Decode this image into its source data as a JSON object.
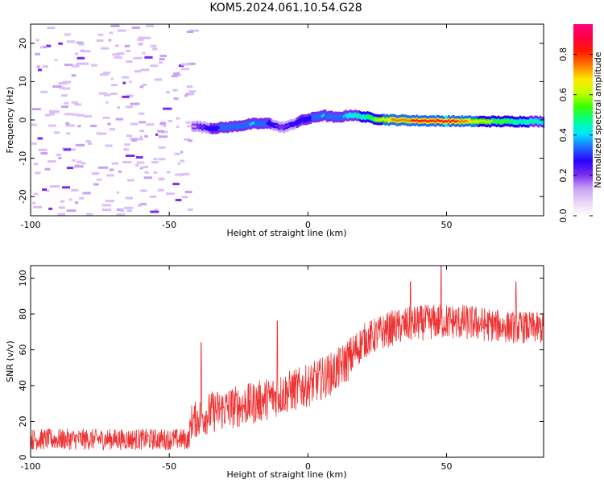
{
  "title": "KOM5.2024.061.10.54.G28",
  "chart_data": [
    {
      "type": "heatmap",
      "xlabel": "Height of straight line (km)",
      "ylabel": "Frequency (Hz)",
      "xlim": [
        -100,
        85
      ],
      "ylim": [
        -25,
        25
      ],
      "xticks": [
        -100,
        -50,
        0,
        50
      ],
      "yticks": [
        -20,
        -10,
        0,
        10,
        20
      ],
      "colorbar": {
        "label": "Normalized spectral amplitude",
        "range": [
          0,
          0.95
        ],
        "ticks": [
          0.0,
          0.2,
          0.4,
          0.6,
          0.8
        ],
        "colormap": [
          "#ffffff",
          "#e8d4f7",
          "#c8a0f5",
          "#7a2cf0",
          "#2a00ff",
          "#1e6bff",
          "#00e8ff",
          "#00ff88",
          "#3cff00",
          "#c8ff00",
          "#ffe600",
          "#ff7a00",
          "#ff1a00",
          "#ff0040",
          "#ff0080"
        ]
      },
      "ridge": {
        "description_points_x": [
          -42,
          -35,
          -28,
          -20,
          -14,
          -10,
          -7,
          -3,
          0,
          5,
          10,
          15,
          20,
          25,
          30,
          40,
          50,
          60,
          70,
          85
        ],
        "frequency_hz": [
          -1.5,
          -2.2,
          -1.8,
          -1.0,
          -0.9,
          -2.0,
          -1.5,
          -0.2,
          0.3,
          1.2,
          0.6,
          1.3,
          0.8,
          0.2,
          0.0,
          -0.2,
          -0.3,
          -0.4,
          -0.4,
          -0.4
        ],
        "amplitude": [
          0.15,
          0.3,
          0.35,
          0.4,
          0.3,
          0.2,
          0.25,
          0.3,
          0.3,
          0.4,
          0.35,
          0.45,
          0.5,
          0.65,
          0.75,
          0.85,
          0.9,
          0.7,
          0.55,
          0.45
        ]
      },
      "noise_region_x": [
        -100,
        -42
      ]
    },
    {
      "type": "line",
      "xlabel": "Height of straight line (km)",
      "ylabel": "SNR (v/v)",
      "xlim": [
        -100,
        85
      ],
      "ylim": [
        0,
        107
      ],
      "xticks": [
        -100,
        -50,
        0,
        50
      ],
      "yticks": [
        0,
        20,
        40,
        60,
        80,
        100
      ],
      "color": "#ee3333",
      "series": [
        {
          "trend_x": [
            -100,
            -90,
            -80,
            -70,
            -60,
            -50,
            -43,
            -42,
            -35,
            -30,
            -20,
            -10,
            0,
            10,
            15,
            20,
            30,
            40,
            50,
            60,
            70,
            85
          ],
          "trend_y": [
            10,
            10,
            10,
            10,
            10,
            10,
            10,
            20,
            25,
            27,
            30,
            35,
            40,
            48,
            55,
            65,
            72,
            75,
            76,
            75,
            73,
            72
          ],
          "spread": [
            6,
            6,
            6,
            6,
            6,
            6,
            6,
            10,
            12,
            12,
            12,
            12,
            12,
            12,
            12,
            10,
            10,
            10,
            10,
            10,
            9,
            9
          ],
          "peaks": [
            {
              "x": -38.5,
              "y": 64
            },
            {
              "x": -11,
              "y": 76
            },
            {
              "x": 48,
              "y": 107
            },
            {
              "x": 37,
              "y": 98
            },
            {
              "x": 75,
              "y": 98
            }
          ]
        }
      ]
    }
  ]
}
